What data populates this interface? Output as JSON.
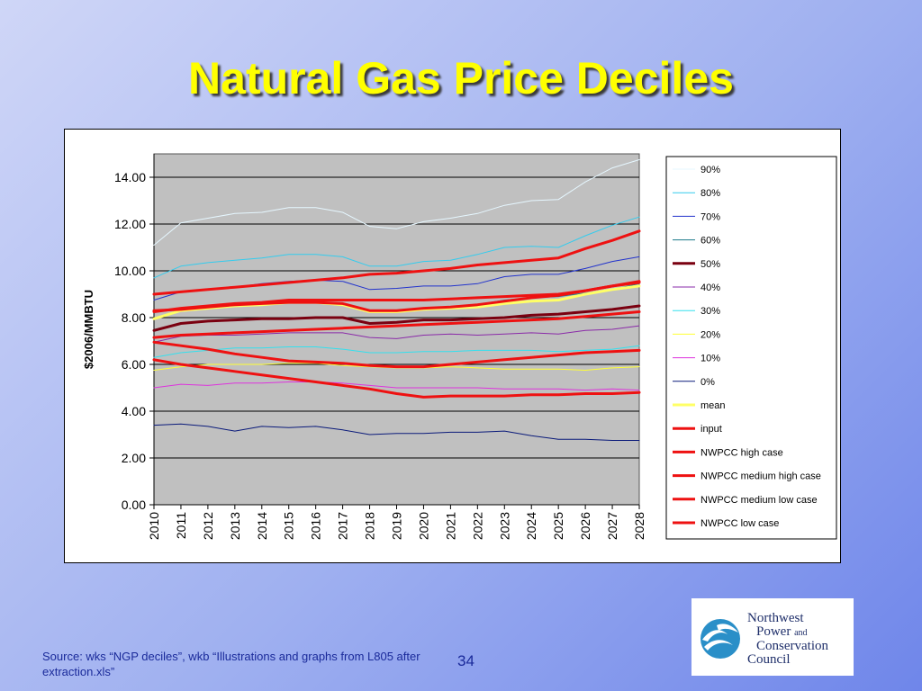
{
  "slide": {
    "title": "Natural Gas Price Deciles",
    "source": "Source: wks “NGP deciles”, wkb “Illustrations and graphs from L805 after extraction.xls”",
    "page_number": "34",
    "logo": {
      "line1": "Northwest",
      "line2": "Power",
      "and": "and",
      "line3": "Conservation",
      "line4": "Council"
    }
  },
  "chart_data": {
    "type": "line",
    "title": "",
    "xlabel": "",
    "ylabel": "$2006/MMBTU",
    "ylim": [
      0,
      15
    ],
    "yticks": [
      "0.00",
      "2.00",
      "4.00",
      "6.00",
      "8.00",
      "10.00",
      "12.00",
      "14.00"
    ],
    "grid": true,
    "legend_position": "right",
    "x": [
      "2010",
      "2011",
      "2012",
      "2013",
      "2014",
      "2015",
      "2016",
      "2017",
      "2018",
      "2019",
      "2020",
      "2021",
      "2022",
      "2023",
      "2024",
      "2025",
      "2026",
      "2027",
      "2028"
    ],
    "series": [
      {
        "name": "90%",
        "color": "#e6f7ff",
        "width": 1,
        "values": [
          11.1,
          12.05,
          12.25,
          12.45,
          12.5,
          12.7,
          12.7,
          12.5,
          11.9,
          11.8,
          12.1,
          12.25,
          12.45,
          12.8,
          13.0,
          13.05,
          13.8,
          14.4,
          14.75
        ]
      },
      {
        "name": "80%",
        "color": "#33ccee",
        "width": 1,
        "values": [
          9.7,
          10.2,
          10.35,
          10.45,
          10.55,
          10.7,
          10.7,
          10.6,
          10.2,
          10.2,
          10.4,
          10.45,
          10.7,
          11.0,
          11.05,
          11.0,
          11.5,
          11.95,
          12.3
        ]
      },
      {
        "name": "70%",
        "color": "#2233cc",
        "width": 1,
        "values": [
          8.75,
          9.1,
          9.2,
          9.3,
          9.45,
          9.55,
          9.6,
          9.55,
          9.2,
          9.25,
          9.35,
          9.35,
          9.45,
          9.75,
          9.85,
          9.85,
          10.1,
          10.4,
          10.6
        ]
      },
      {
        "name": "60%",
        "color": "#1a7a8a",
        "width": 1,
        "values": [
          7.95,
          8.35,
          8.45,
          8.55,
          8.6,
          8.65,
          8.65,
          8.6,
          8.3,
          8.3,
          8.4,
          8.45,
          8.55,
          8.75,
          8.85,
          8.9,
          9.05,
          9.2,
          9.45
        ]
      },
      {
        "name": "50%",
        "color": "#7a0010",
        "width": 3,
        "values": [
          7.45,
          7.75,
          7.85,
          7.9,
          7.95,
          7.95,
          8.0,
          8.0,
          7.75,
          7.8,
          7.9,
          7.9,
          7.95,
          8.0,
          8.1,
          8.15,
          8.25,
          8.35,
          8.5
        ]
      },
      {
        "name": "40%",
        "color": "#8a2aa8",
        "width": 1,
        "values": [
          6.95,
          7.2,
          7.25,
          7.25,
          7.3,
          7.35,
          7.35,
          7.35,
          7.15,
          7.1,
          7.25,
          7.3,
          7.25,
          7.3,
          7.35,
          7.3,
          7.45,
          7.5,
          7.65
        ]
      },
      {
        "name": "30%",
        "color": "#33e0ee",
        "width": 1,
        "values": [
          6.3,
          6.5,
          6.6,
          6.7,
          6.7,
          6.75,
          6.75,
          6.65,
          6.5,
          6.5,
          6.55,
          6.55,
          6.6,
          6.6,
          6.6,
          6.55,
          6.6,
          6.65,
          6.8
        ]
      },
      {
        "name": "20%",
        "color": "#ffff33",
        "width": 1,
        "values": [
          5.75,
          5.9,
          6.0,
          6.0,
          6.0,
          6.05,
          6.05,
          5.95,
          5.9,
          5.85,
          5.85,
          5.9,
          5.85,
          5.8,
          5.8,
          5.8,
          5.75,
          5.85,
          5.9
        ]
      },
      {
        "name": "10%",
        "color": "#dd33dd",
        "width": 1,
        "values": [
          5.0,
          5.15,
          5.1,
          5.2,
          5.2,
          5.25,
          5.25,
          5.2,
          5.1,
          5.0,
          5.0,
          5.0,
          5.0,
          4.95,
          4.95,
          4.95,
          4.9,
          4.95,
          4.9
        ]
      },
      {
        "name": "0%",
        "color": "#0a1a7a",
        "width": 1,
        "values": [
          3.4,
          3.45,
          3.35,
          3.15,
          3.35,
          3.3,
          3.35,
          3.2,
          3.0,
          3.05,
          3.05,
          3.1,
          3.1,
          3.15,
          2.95,
          2.8,
          2.8,
          2.75,
          2.75
        ]
      },
      {
        "name": "mean",
        "color": "#ffff66",
        "width": 3,
        "values": [
          7.95,
          8.3,
          8.4,
          8.5,
          8.55,
          8.65,
          8.65,
          8.55,
          8.25,
          8.25,
          8.35,
          8.4,
          8.45,
          8.6,
          8.7,
          8.75,
          9.0,
          9.2,
          9.35
        ]
      },
      {
        "name": "input",
        "color": "#ee1111",
        "width": 3,
        "values": [
          8.3,
          8.35,
          8.45,
          8.55,
          8.6,
          8.65,
          8.65,
          8.6,
          8.3,
          8.3,
          8.4,
          8.45,
          8.55,
          8.7,
          8.85,
          8.95,
          9.15,
          9.35,
          9.55
        ]
      },
      {
        "name": "NWPCC high case",
        "color": "#ee1111",
        "width": 3,
        "values": [
          9.0,
          9.1,
          9.2,
          9.3,
          9.4,
          9.5,
          9.6,
          9.7,
          9.85,
          9.9,
          10.0,
          10.1,
          10.25,
          10.35,
          10.45,
          10.55,
          10.95,
          11.3,
          11.7
        ]
      },
      {
        "name": "NWPCC medium high case",
        "color": "#ee1111",
        "width": 3,
        "values": [
          8.25,
          8.4,
          8.5,
          8.6,
          8.65,
          8.75,
          8.75,
          8.75,
          8.75,
          8.75,
          8.75,
          8.8,
          8.85,
          8.9,
          8.95,
          9.0,
          9.15,
          9.35,
          9.5
        ]
      },
      {
        "name": "NWPCC medium low  case",
        "color": "#ee1111",
        "width": 3,
        "values": [
          7.15,
          7.25,
          7.3,
          7.35,
          7.4,
          7.45,
          7.5,
          7.55,
          7.6,
          7.65,
          7.7,
          7.75,
          7.8,
          7.85,
          7.9,
          7.95,
          8.05,
          8.15,
          8.25
        ]
      },
      {
        "name": "NWPCC low  case",
        "color": "#ee1111",
        "width": 3,
        "values": [
          6.95,
          6.8,
          6.65,
          6.45,
          6.3,
          6.15,
          6.1,
          6.05,
          5.95,
          5.9,
          5.9,
          6.0,
          6.1,
          6.2,
          6.3,
          6.4,
          6.5,
          6.55,
          6.6
        ]
      },
      {
        "name": "",
        "color": "#ee1111",
        "width": 3,
        "values": [
          6.2,
          6.0,
          5.85,
          5.7,
          5.55,
          5.4,
          5.25,
          5.1,
          4.95,
          4.75,
          4.6,
          4.65,
          4.65,
          4.65,
          4.7,
          4.7,
          4.75,
          4.75,
          4.8
        ]
      }
    ]
  }
}
